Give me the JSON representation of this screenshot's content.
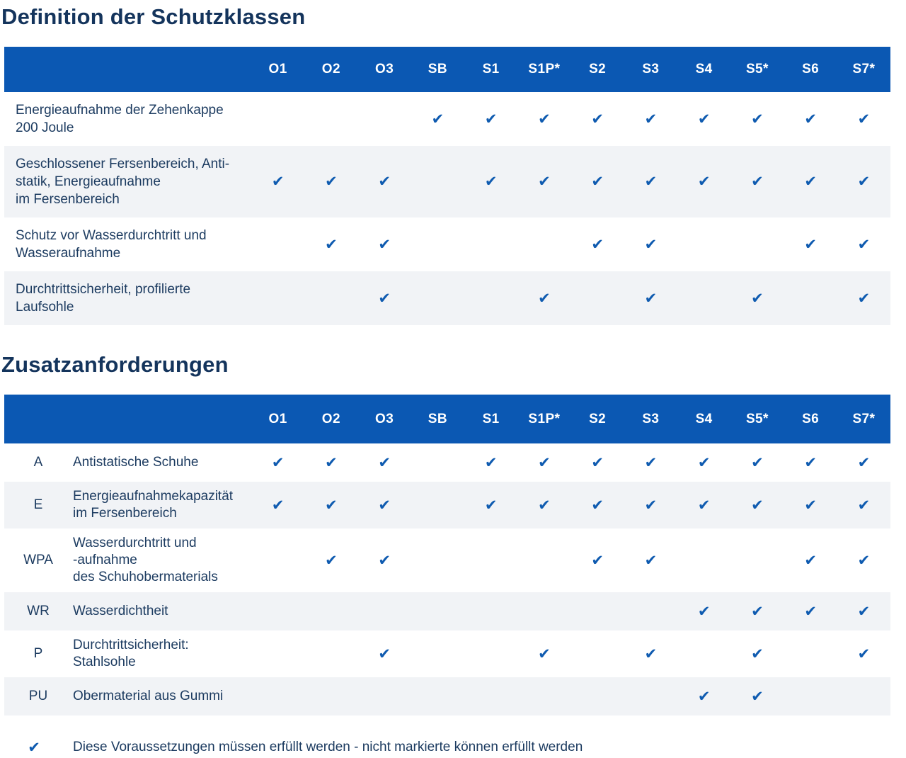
{
  "colors": {
    "header_bg": "#0b58b3",
    "check_blue": "#0f5bb0",
    "row_alt_bg": "#f1f3f6",
    "text": "#1c3b60"
  },
  "icons": {
    "check": "✔"
  },
  "columns": [
    "O1",
    "O2",
    "O3",
    "SB",
    "S1",
    "S1P*",
    "S2",
    "S3",
    "S4",
    "S5*",
    "S6",
    "S7*"
  ],
  "section1": {
    "title": "Definition der Schutzklassen",
    "rows": [
      {
        "label": "Energieaufnahme der Zehenkappe\n200 Joule",
        "checks": [
          0,
          0,
          0,
          1,
          1,
          1,
          1,
          1,
          1,
          1,
          1,
          1
        ]
      },
      {
        "label": "Geschlossener Fersenbereich, Anti-\nstatik, Energieaufnahme\nim Fersenbereich",
        "checks": [
          1,
          1,
          1,
          0,
          1,
          1,
          1,
          1,
          1,
          1,
          1,
          1
        ]
      },
      {
        "label": "Schutz vor Wasserdurchtritt und\nWasseraufnahme",
        "checks": [
          0,
          1,
          1,
          0,
          0,
          0,
          1,
          1,
          0,
          0,
          1,
          1
        ]
      },
      {
        "label": "Durchtrittsicherheit, profilierte\nLaufsohle",
        "checks": [
          0,
          0,
          1,
          0,
          0,
          1,
          0,
          1,
          0,
          1,
          0,
          1
        ]
      }
    ]
  },
  "section2": {
    "title": "Zusatzanforderungen",
    "rows": [
      {
        "code": "A",
        "label": "Antistatische Schuhe",
        "checks": [
          1,
          1,
          1,
          0,
          1,
          1,
          1,
          1,
          1,
          1,
          1,
          1
        ]
      },
      {
        "code": "E",
        "label": "Energieaufnahmekapazität\nim Fersenbereich",
        "checks": [
          1,
          1,
          1,
          0,
          1,
          1,
          1,
          1,
          1,
          1,
          1,
          1
        ]
      },
      {
        "code": "WPA",
        "label": "Wasserdurchtritt und\n-aufnahme\ndes Schuhobermaterials",
        "checks": [
          0,
          1,
          1,
          0,
          0,
          0,
          1,
          1,
          0,
          0,
          1,
          1
        ]
      },
      {
        "code": "WR",
        "label": "Wasserdichtheit",
        "checks": [
          0,
          0,
          0,
          0,
          0,
          0,
          0,
          0,
          1,
          1,
          1,
          1
        ]
      },
      {
        "code": "P",
        "label": "Durchtrittsicherheit:\nStahlsohle",
        "checks": [
          0,
          0,
          1,
          0,
          0,
          1,
          0,
          1,
          0,
          1,
          0,
          1
        ]
      },
      {
        "code": "PU",
        "label": "Obermaterial aus Gummi",
        "checks": [
          0,
          0,
          0,
          0,
          0,
          0,
          0,
          0,
          1,
          1,
          0,
          0
        ]
      }
    ]
  },
  "legend": {
    "text": "Diese Voraussetzungen müssen erfüllt werden - nicht markierte können erfüllt werden"
  }
}
